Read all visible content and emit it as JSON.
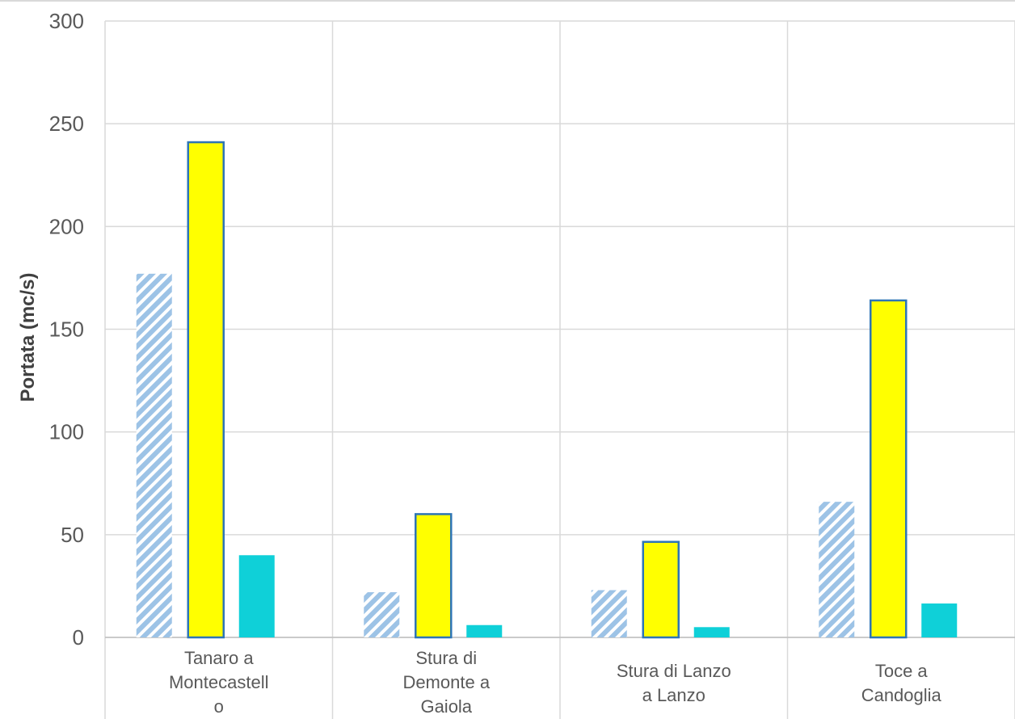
{
  "chart_data": {
    "type": "bar",
    "title": "",
    "xlabel": "",
    "ylabel": "Portata (mc/s)",
    "ylim": [
      0,
      300
    ],
    "yticks": [
      0,
      50,
      100,
      150,
      200,
      250,
      300
    ],
    "grid": true,
    "legend": "none",
    "categories": [
      [
        "Tanaro a",
        "Montecastell",
        "o"
      ],
      [
        "Stura di",
        "Demonte a",
        "Gaiola"
      ],
      [
        "Stura di Lanzo",
        "a Lanzo"
      ],
      [
        "Toce a",
        "Candoglia"
      ]
    ],
    "series": [
      {
        "values": [
          177,
          22,
          23,
          66
        ],
        "fill": "#9dc3e6",
        "style": "hatched"
      },
      {
        "values": [
          241,
          60,
          46.5,
          164
        ],
        "fill": "#ffff00",
        "stroke": "#2e75b6",
        "style": "solid"
      },
      {
        "values": [
          40,
          6,
          5,
          16.5
        ],
        "fill": "#0fd0d8",
        "style": "solid"
      }
    ]
  }
}
